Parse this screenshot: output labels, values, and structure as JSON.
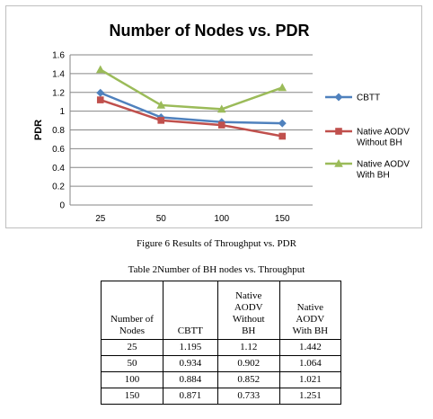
{
  "chart_data": {
    "type": "line",
    "title": "Number of Nodes vs. PDR",
    "ylabel": "PDR",
    "xlabel": "",
    "categories": [
      "25",
      "50",
      "100",
      "150"
    ],
    "ylim": [
      0,
      1.6
    ],
    "yticks": [
      "0",
      "0.2",
      "0.4",
      "0.6",
      "0.8",
      "1",
      "1.2",
      "1.4",
      "1.6"
    ],
    "grid": true,
    "legend_position": "right",
    "series": [
      {
        "name": "CBTT",
        "legend_lines": [
          "CBTT"
        ],
        "values": [
          1.195,
          0.934,
          0.884,
          0.871
        ],
        "color": "#4f81bd",
        "marker": "diamond"
      },
      {
        "name": "Native AODV Without BH",
        "legend_lines": [
          "Native AODV",
          "Without BH"
        ],
        "values": [
          1.12,
          0.902,
          0.852,
          0.733
        ],
        "color": "#c0504d",
        "marker": "square"
      },
      {
        "name": "Native AODV With BH",
        "legend_lines": [
          "Native AODV",
          "With BH"
        ],
        "values": [
          1.442,
          1.064,
          1.021,
          1.251
        ],
        "color": "#9bbb59",
        "marker": "triangle"
      }
    ]
  },
  "figure_caption": "Figure 6 Results of Throughput vs. PDR",
  "table_caption": "Table 2Number of BH nodes vs. Throughput",
  "table": {
    "headers": [
      [
        "Number of",
        "Nodes"
      ],
      [
        "CBTT"
      ],
      [
        "Native",
        "AODV",
        "Without",
        "BH"
      ],
      [
        "Native",
        "AODV",
        "With BH"
      ]
    ],
    "rows": [
      [
        "25",
        "1.195",
        "1.12",
        "1.442"
      ],
      [
        "50",
        "0.934",
        "0.902",
        "1.064"
      ],
      [
        "100",
        "0.884",
        "0.852",
        "1.021"
      ],
      [
        "150",
        "0.871",
        "0.733",
        "1.251"
      ]
    ]
  }
}
